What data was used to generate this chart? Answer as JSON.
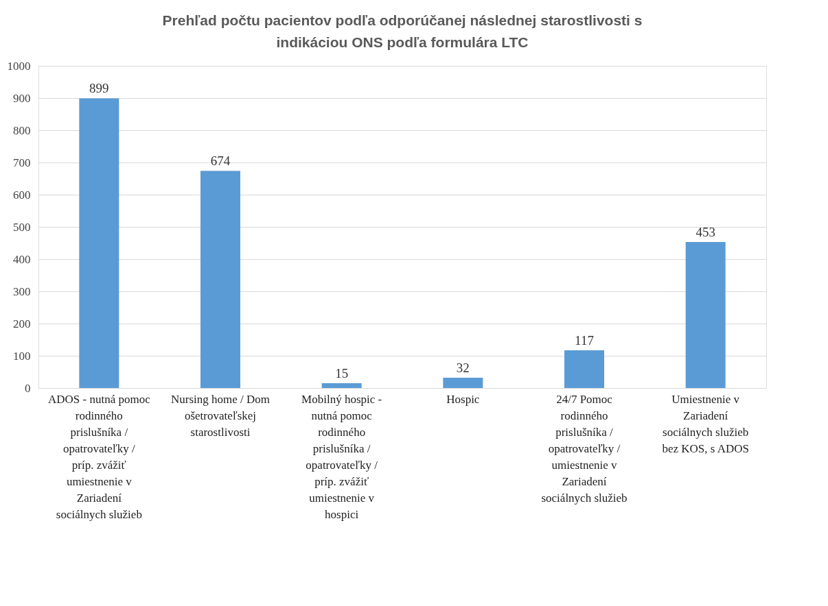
{
  "chart_data": {
    "type": "bar",
    "title": "Prehľad počtu pacientov podľa odporúčanej následnej starostlivosti s indikáciou ONS podľa formulára LTC",
    "categories": [
      "ADOS - nutná pomoc rodinného prislušníka / opatrovateľky / príp. zvážiť umiestnenie v Zariadení sociálnych služieb",
      "Nursing home / Dom ošetrovateľskej starostlivosti",
      "Mobilný hospic - nutná pomoc rodinného prislušníka / opatrovateľky / príp. zvážiť umiestnenie v hospici",
      "Hospic",
      "24/7 Pomoc rodinného prislušníka / opatrovateľky / umiestnenie v Zariadení sociálnych služieb",
      "Umiestnenie v Zariadení sociálnych služieb bez KOS, s ADOS"
    ],
    "values": [
      899,
      674,
      15,
      32,
      117,
      453
    ],
    "color": "#5b9bd5",
    "ylim": [
      0,
      1000
    ],
    "yticks": [
      0,
      100,
      200,
      300,
      400,
      500,
      600,
      700,
      800,
      900,
      1000
    ],
    "grid": "y",
    "data_labels": true
  }
}
